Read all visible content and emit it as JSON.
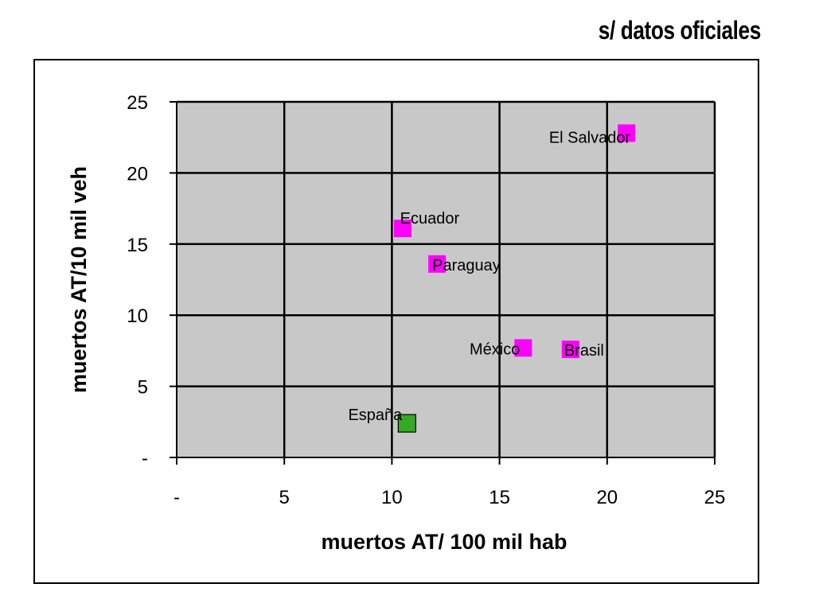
{
  "source_note": "s/ datos oficiales",
  "chart_data": {
    "type": "scatter",
    "title": "",
    "xlabel": "muertos AT/ 100 mil hab",
    "ylabel": "muertos AT/10 mil veh",
    "xlim": [
      0,
      25
    ],
    "ylim": [
      0,
      25
    ],
    "xticks": [
      0,
      5,
      10,
      15,
      20,
      25
    ],
    "yticks": [
      0,
      5,
      10,
      15,
      20,
      25
    ],
    "xtick_labels": [
      "-",
      "5",
      "10",
      "15",
      "20",
      "25"
    ],
    "ytick_labels": [
      "-",
      "5",
      "10",
      "15",
      "20",
      "25"
    ],
    "grid": true,
    "plot_background": "#c8c8c8",
    "points": [
      {
        "label": "El Salvador",
        "x": 20.9,
        "y": 22.8,
        "color": "#ff00ff"
      },
      {
        "label": "Ecuador",
        "x": 10.5,
        "y": 16.1,
        "color": "#ff00ff"
      },
      {
        "label": "Paraguay",
        "x": 12.1,
        "y": 13.6,
        "color": "#ff00ff"
      },
      {
        "label": "México",
        "x": 16.1,
        "y": 7.7,
        "color": "#ff00ff"
      },
      {
        "label": "Brasil",
        "x": 18.3,
        "y": 7.6,
        "color": "#ff00ff"
      },
      {
        "label": "España",
        "x": 10.7,
        "y": 2.4,
        "color": "#33aa22"
      }
    ]
  }
}
